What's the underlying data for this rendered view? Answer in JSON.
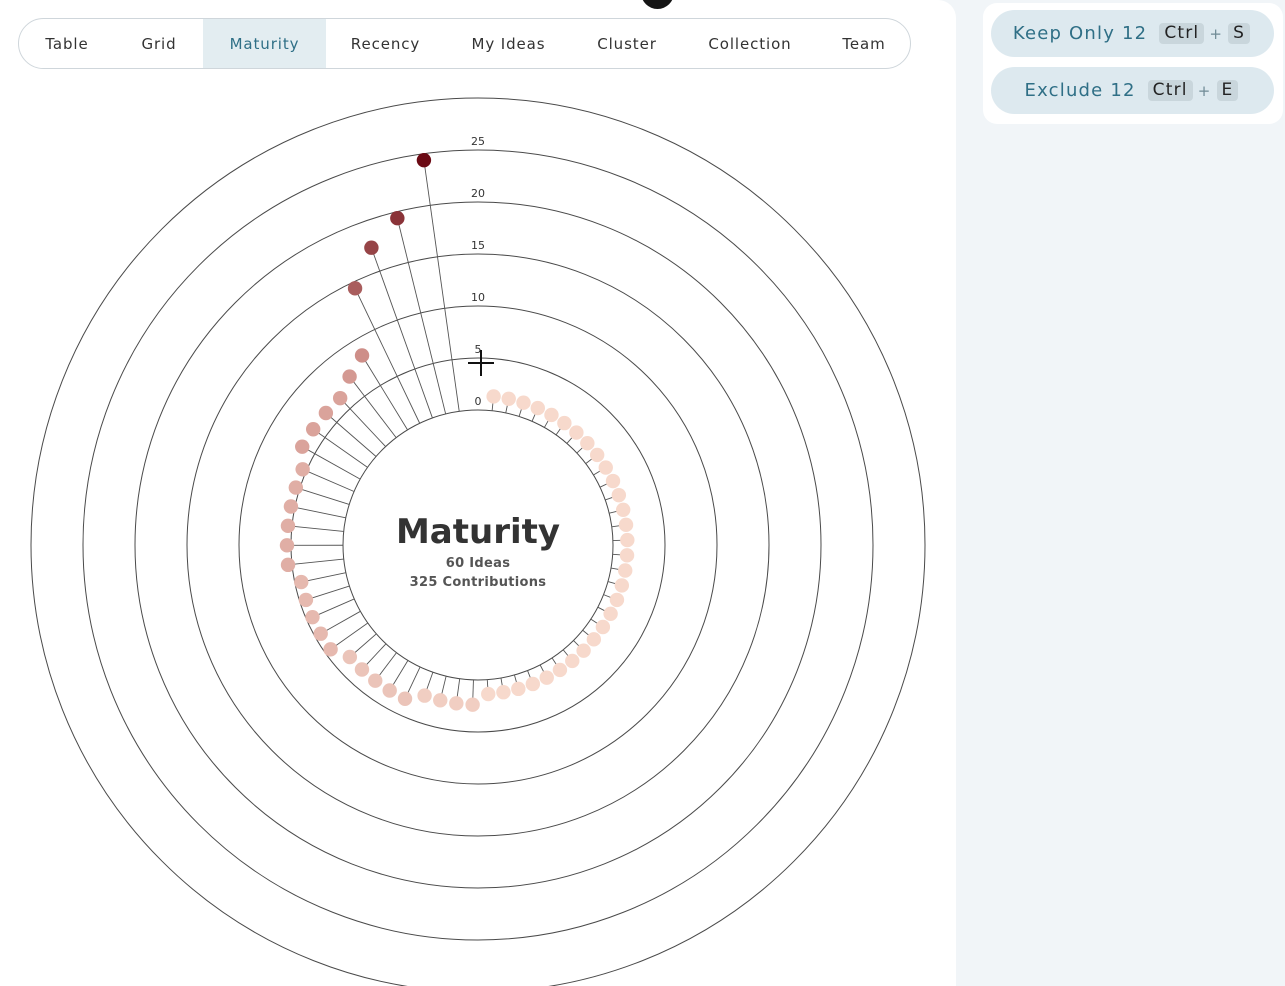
{
  "tabs": [
    {
      "label": "Table",
      "active": false
    },
    {
      "label": "Grid",
      "active": false
    },
    {
      "label": "Maturity",
      "active": true
    },
    {
      "label": "Recency",
      "active": false
    },
    {
      "label": "My Ideas",
      "active": false
    },
    {
      "label": "Cluster",
      "active": false
    },
    {
      "label": "Collection",
      "active": false
    },
    {
      "label": "Team",
      "active": false
    }
  ],
  "actions": {
    "keep": {
      "label": "Keep Only 12",
      "key1": "Ctrl",
      "plus": "+",
      "key2": "S"
    },
    "exclude": {
      "label": "Exclude 12",
      "key1": "Ctrl",
      "plus": "+",
      "key2": "E"
    }
  },
  "chart": {
    "title": "Maturity",
    "ideas_text": "60 Ideas",
    "contributions_text": "325 Contributions"
  },
  "chart_data": {
    "type": "radial-lollipop",
    "ring_labels": [
      "0",
      "5",
      "10",
      "15",
      "20",
      "25"
    ],
    "rings": [
      0,
      5,
      10,
      15,
      20,
      25,
      30
    ],
    "count": 60,
    "values": [
      1,
      1,
      1,
      1,
      1,
      1,
      1,
      1,
      1,
      1,
      1,
      1,
      1,
      1,
      1,
      1,
      1,
      1,
      1,
      1,
      1,
      1,
      1,
      1,
      1,
      1,
      1,
      1,
      1,
      1,
      2,
      2,
      2,
      2,
      3,
      3,
      3,
      3,
      3,
      4,
      4,
      4,
      4,
      4,
      5,
      5,
      5,
      5,
      5,
      5,
      6,
      6,
      6,
      6,
      7,
      8,
      14,
      17,
      19,
      24
    ],
    "color_low": "#f7d9cc",
    "color_mid": "#cf8f89",
    "color_high": "#6b0a14"
  }
}
